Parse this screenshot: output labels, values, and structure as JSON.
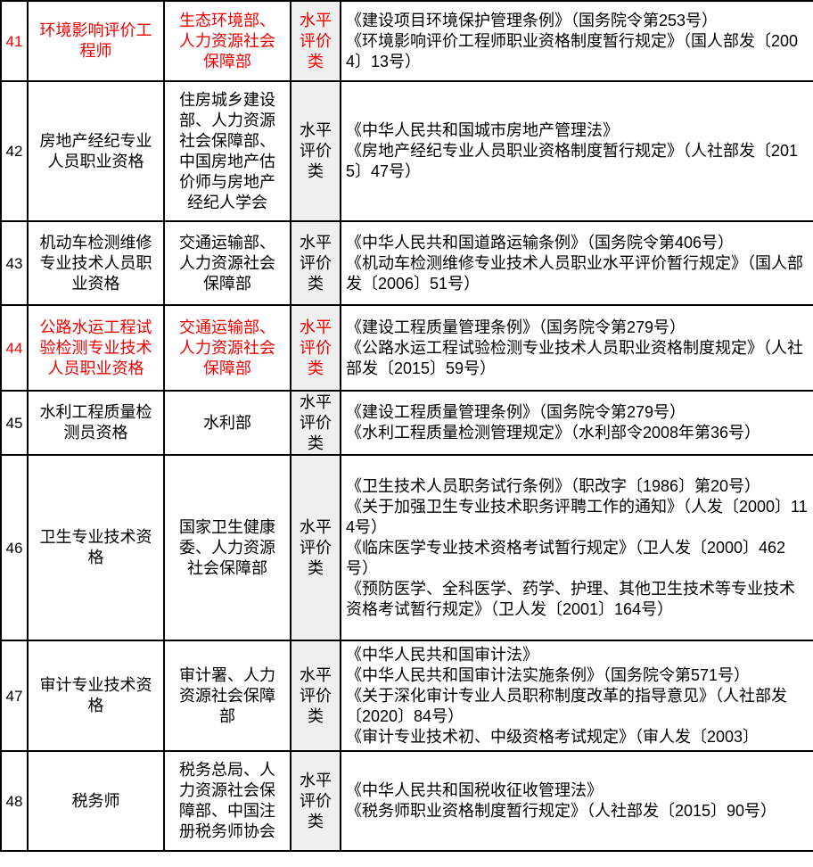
{
  "colors": {
    "highlight_red": "#f20000",
    "category_column_background": "#efefef",
    "border": "#000000",
    "text": "#000000"
  },
  "rows": [
    {
      "no": "41",
      "name": "环境影响评价工程师",
      "department": "生态环境部、人力资源社会保障部",
      "category": "水平评价类",
      "highlighted": true,
      "basis": [
        "《建设项目环境保护管理条例》（国务院令第253号）",
        "《环境影响评价工程师职业资格制度暂行规定》（国人部发〔2004〕13号）"
      ]
    },
    {
      "no": "42",
      "name": "房地产经纪专业人员职业资格",
      "department": "住房城乡建设部、人力资源社会保障部、中国房地产估价师与房地产经纪人学会",
      "category": "水平评价类",
      "highlighted": false,
      "basis": [
        "《中华人民共和国城市房地产管理法》",
        "《房地产经纪专业人员职业资格制度暂行规定》（人社部发〔2015〕47号）"
      ]
    },
    {
      "no": "43",
      "name": "机动车检测维修专业技术人员职业资格",
      "department": "交通运输部、人力资源社会保障部",
      "category": "水平评价类",
      "highlighted": false,
      "basis": [
        "《中华人民共和国道路运输条例》（国务院令第406号）",
        "《机动车检测维修专业技术人员职业水平评价暂行规定》（国人部发〔2006〕51号）"
      ]
    },
    {
      "no": "44",
      "name": "公路水运工程试验检测专业技术人员职业资格",
      "department": "交通运输部、人力资源社会保障部",
      "category": "水平评价类",
      "highlighted": true,
      "basis": [
        "《建设工程质量管理条例》（国务院令第279号）",
        "《公路水运工程试验检测专业技术人员职业资格制度规定》（人社部发〔2015〕59号）"
      ]
    },
    {
      "no": "45",
      "name": "水利工程质量检测员资格",
      "department": "水利部",
      "category": "水平评价类",
      "highlighted": false,
      "basis": [
        "《建设工程质量管理条例》（国务院令第279号）",
        "《水利工程质量检测管理规定》（水利部令2008年第36号）"
      ]
    },
    {
      "no": "46",
      "name": "卫生专业技术资格",
      "department": "国家卫生健康委、人力资源社会保障部",
      "category": "水平评价类",
      "highlighted": false,
      "basis": [
        "《卫生技术人员职务试行条例》（职改字〔1986〕第20号）",
        "《关于加强卫生专业技术职务评聘工作的通知》（人发〔2000〕114号）",
        "《临床医学专业技术资格考试暂行规定》（卫人发〔2000〕462号）",
        "《预防医学、全科医学、药学、护理、其他卫生技术等专业技术资格考试暂行规定》（卫人发〔2001〕164号）"
      ]
    },
    {
      "no": "47",
      "name": "审计专业技术资格",
      "department": "审计署、人力资源社会保障部",
      "category": "水平评价类",
      "highlighted": false,
      "basis": [
        "《中华人民共和国审计法》",
        "《中华人民共和国审计法实施条例》（国务院令第571号）",
        "《关于深化审计专业人员职称制度改革的指导意见》（人社部发〔2020〕84号）",
        "《审计专业技术初、中级资格考试规定》（审人发〔2003〕"
      ]
    },
    {
      "no": "48",
      "name": "税务师",
      "department": "税务总局、人力资源社会保障部、中国注册税务师协会",
      "category": "水平评价类",
      "highlighted": false,
      "basis": [
        "《中华人民共和国税收征收管理法》",
        "《税务师职业资格制度暂行规定》（人社部发〔2015〕90号）"
      ]
    }
  ]
}
